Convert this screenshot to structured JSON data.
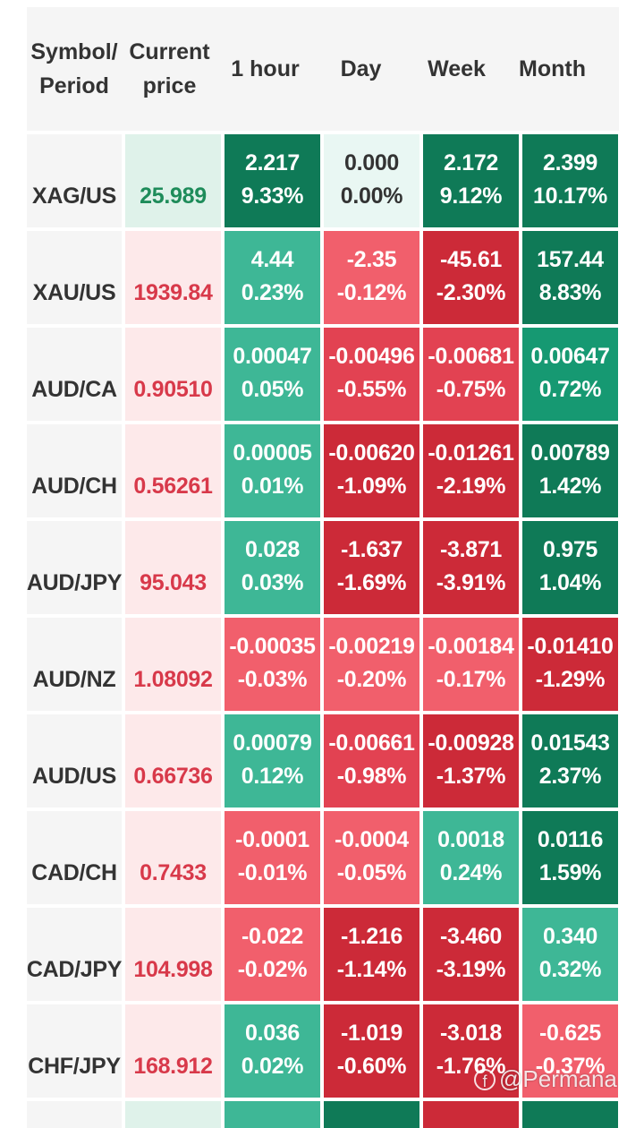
{
  "header": {
    "symbol_period": "Symbol/\nPeriod",
    "current_price": "Current\nprice",
    "hour": "1 hour",
    "day": "Day",
    "week": "Week",
    "month": "Month"
  },
  "colors": {
    "up_strong": "#0f7a57",
    "up_mid": "#169972",
    "up_light": "#3eb796",
    "neutral": "#e9f7f3",
    "down_light": "#f15f6c",
    "down_mid": "#e24252",
    "down_strong": "#cc2a38"
  },
  "rows": [
    {
      "symbol": "XAG/US",
      "price": "25.989",
      "price_dir": "up",
      "h": [
        "2.217",
        "9.33%"
      ],
      "d": [
        "0.000",
        "0.00%"
      ],
      "w": [
        "2.172",
        "9.12%"
      ],
      "m": [
        "2.399",
        "10.17%"
      ],
      "hc": "up_strong",
      "dc": "neutral",
      "wc": "up_strong",
      "mc": "up_strong"
    },
    {
      "symbol": "XAU/US",
      "price": "1939.84",
      "price_dir": "down",
      "h": [
        "4.44",
        "0.23%"
      ],
      "d": [
        "-2.35",
        "-0.12%"
      ],
      "w": [
        "-45.61",
        "-2.30%"
      ],
      "m": [
        "157.44",
        "8.83%"
      ],
      "hc": "up_light",
      "dc": "down_light",
      "wc": "down_strong",
      "mc": "up_strong"
    },
    {
      "symbol": "AUD/CA",
      "price": "0.90510",
      "price_dir": "down",
      "h": [
        "0.00047",
        "0.05%"
      ],
      "d": [
        "-0.00496",
        "-0.55%"
      ],
      "w": [
        "-0.00681",
        "-0.75%"
      ],
      "m": [
        "0.00647",
        "0.72%"
      ],
      "hc": "up_light",
      "dc": "down_mid",
      "wc": "down_mid",
      "mc": "up_mid"
    },
    {
      "symbol": "AUD/CH",
      "price": "0.56261",
      "price_dir": "down",
      "h": [
        "0.00005",
        "0.01%"
      ],
      "d": [
        "-0.00620",
        "-1.09%"
      ],
      "w": [
        "-0.01261",
        "-2.19%"
      ],
      "m": [
        "0.00789",
        "1.42%"
      ],
      "hc": "up_light",
      "dc": "down_strong",
      "wc": "down_strong",
      "mc": "up_strong"
    },
    {
      "symbol": "AUD/JPY",
      "price": "95.043",
      "price_dir": "down",
      "h": [
        "0.028",
        "0.03%"
      ],
      "d": [
        "-1.637",
        "-1.69%"
      ],
      "w": [
        "-3.871",
        "-3.91%"
      ],
      "m": [
        "0.975",
        "1.04%"
      ],
      "hc": "up_light",
      "dc": "down_strong",
      "wc": "down_strong",
      "mc": "up_strong"
    },
    {
      "symbol": "AUD/NZ",
      "price": "1.08092",
      "price_dir": "down",
      "h": [
        "-0.00035",
        "-0.03%"
      ],
      "d": [
        "-0.00219",
        "-0.20%"
      ],
      "w": [
        "-0.00184",
        "-0.17%"
      ],
      "m": [
        "-0.01410",
        "-1.29%"
      ],
      "hc": "down_light",
      "dc": "down_light",
      "wc": "down_light",
      "mc": "down_strong"
    },
    {
      "symbol": "AUD/US",
      "price": "0.66736",
      "price_dir": "down",
      "h": [
        "0.00079",
        "0.12%"
      ],
      "d": [
        "-0.00661",
        "-0.98%"
      ],
      "w": [
        "-0.00928",
        "-1.37%"
      ],
      "m": [
        "0.01543",
        "2.37%"
      ],
      "hc": "up_light",
      "dc": "down_mid",
      "wc": "down_strong",
      "mc": "up_strong"
    },
    {
      "symbol": "CAD/CH",
      "price": "0.7433",
      "price_dir": "down",
      "h": [
        "-0.0001",
        "-0.01%"
      ],
      "d": [
        "-0.0004",
        "-0.05%"
      ],
      "w": [
        "0.0018",
        "0.24%"
      ],
      "m": [
        "0.0116",
        "1.59%"
      ],
      "hc": "down_light",
      "dc": "down_light",
      "wc": "up_light",
      "mc": "up_strong"
    },
    {
      "symbol": "CAD/JPY",
      "price": "104.998",
      "price_dir": "down",
      "h": [
        "-0.022",
        "-0.02%"
      ],
      "d": [
        "-1.216",
        "-1.14%"
      ],
      "w": [
        "-3.460",
        "-3.19%"
      ],
      "m": [
        "0.340",
        "0.32%"
      ],
      "hc": "down_light",
      "dc": "down_strong",
      "wc": "down_strong",
      "mc": "up_light"
    },
    {
      "symbol": "CHF/JPY",
      "price": "168.912",
      "price_dir": "down",
      "h": [
        "0.036",
        "0.02%"
      ],
      "d": [
        "-1.019",
        "-0.60%"
      ],
      "w": [
        "-3.018",
        "-1.76%"
      ],
      "m": [
        "-0.625",
        "-0.37%"
      ],
      "hc": "up_light",
      "dc": "down_strong",
      "wc": "down_strong",
      "mc": "down_light"
    }
  ],
  "partial_row": {
    "pc": "up",
    "hc": "up_light",
    "dc": "up_strong",
    "wc": "down_strong",
    "mc": "up_strong"
  },
  "watermark": {
    "icon": "facebook-icon",
    "text": "@Permana"
  }
}
